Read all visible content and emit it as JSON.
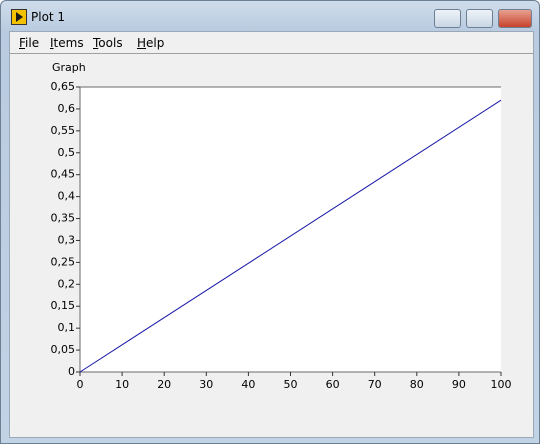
{
  "window": {
    "title": "Plot 1"
  },
  "menu": {
    "items": [
      "File",
      "Items",
      "Tools",
      "Help"
    ]
  },
  "chart_data": {
    "type": "line",
    "title": "Graph",
    "x": [
      0,
      100
    ],
    "series": [
      {
        "color": "#1a1aa8",
        "values": [
          0,
          0.62
        ]
      }
    ],
    "xlim": [
      0,
      100
    ],
    "xticks": [
      0,
      10,
      20,
      30,
      40,
      50,
      60,
      70,
      80,
      90,
      100
    ],
    "ylim": [
      0,
      0.65
    ],
    "yticks": [
      0,
      {
        "value": 0.05,
        "label": "0,05"
      },
      {
        "value": 0.1,
        "label": "0,1"
      },
      {
        "value": 0.15,
        "label": "0,15"
      },
      {
        "value": 0.2,
        "label": "0,2"
      },
      {
        "value": 0.25,
        "label": "0,25"
      },
      {
        "value": 0.3,
        "label": "0,3"
      },
      {
        "value": 0.35,
        "label": "0,35"
      },
      {
        "value": 0.4,
        "label": "0,4"
      },
      {
        "value": 0.45,
        "label": "0,45"
      },
      {
        "value": 0.5,
        "label": "0,5"
      },
      {
        "value": 0.55,
        "label": "0,55"
      },
      {
        "value": 0.6,
        "label": "0,6"
      },
      {
        "value": 0.65,
        "label": "0,65"
      }
    ],
    "grid": false
  }
}
